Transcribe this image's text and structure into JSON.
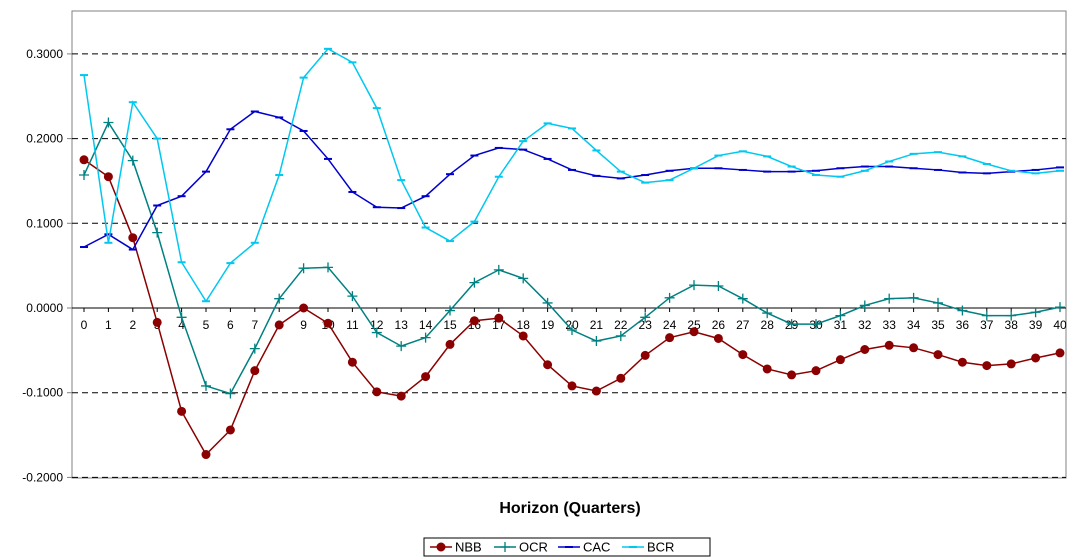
{
  "chart_data": {
    "type": "line",
    "title": "",
    "xlabel": "Horizon (Quarters)",
    "ylabel": "",
    "ylim": [
      -0.2,
      0.35
    ],
    "yticks": [
      "-0.2000",
      "-0.1000",
      "0.0000",
      "0.1000",
      "0.2000",
      "0.3000"
    ],
    "grid": "dashed horizontal",
    "legend_position": "bottom-center",
    "categories": [
      "0",
      "1",
      "2",
      "3",
      "4",
      "5",
      "6",
      "7",
      "8",
      "9",
      "10",
      "11",
      "12",
      "13",
      "14",
      "15",
      "16",
      "17",
      "18",
      "19",
      "20",
      "21",
      "22",
      "23",
      "24",
      "25",
      "26",
      "27",
      "28",
      "29",
      "30",
      "31",
      "32",
      "33",
      "34",
      "35",
      "36",
      "37",
      "38",
      "39",
      "40"
    ],
    "series": [
      {
        "name": "NBB",
        "color": "#8b0000",
        "marker": "circle",
        "values": [
          0.175,
          0.155,
          0.083,
          -0.017,
          -0.122,
          -0.173,
          -0.144,
          -0.074,
          -0.02,
          0.0,
          -0.018,
          -0.064,
          -0.099,
          -0.104,
          -0.081,
          -0.043,
          -0.015,
          -0.012,
          -0.033,
          -0.067,
          -0.092,
          -0.098,
          -0.083,
          -0.056,
          -0.035,
          -0.028,
          -0.036,
          -0.055,
          -0.072,
          -0.079,
          -0.074,
          -0.061,
          -0.049,
          -0.044,
          -0.047,
          -0.055,
          -0.064,
          -0.068,
          -0.066,
          -0.059,
          -0.053
        ]
      },
      {
        "name": "OCR",
        "color": "#008080",
        "marker": "plus",
        "values": [
          0.157,
          0.219,
          0.174,
          0.089,
          -0.011,
          -0.092,
          -0.101,
          -0.048,
          0.011,
          0.047,
          0.048,
          0.014,
          -0.029,
          -0.045,
          -0.035,
          -0.003,
          0.03,
          0.045,
          0.035,
          0.006,
          -0.026,
          -0.039,
          -0.033,
          -0.011,
          0.012,
          0.027,
          0.026,
          0.011,
          -0.006,
          -0.019,
          -0.019,
          -0.009,
          0.003,
          0.011,
          0.012,
          0.006,
          -0.003,
          -0.009,
          -0.009,
          -0.005,
          0.001
        ]
      },
      {
        "name": "CAC",
        "color": "#0000cd",
        "marker": "dash",
        "values": [
          0.072,
          0.087,
          0.069,
          0.121,
          0.132,
          0.161,
          0.211,
          0.232,
          0.225,
          0.209,
          0.176,
          0.137,
          0.119,
          0.118,
          0.132,
          0.158,
          0.18,
          0.189,
          0.187,
          0.176,
          0.163,
          0.156,
          0.153,
          0.157,
          0.162,
          0.165,
          0.165,
          0.163,
          0.161,
          0.161,
          0.162,
          0.165,
          0.167,
          0.167,
          0.165,
          0.163,
          0.16,
          0.159,
          0.161,
          0.163,
          0.166
        ]
      },
      {
        "name": "BCR",
        "color": "#00c8f0",
        "marker": "dash",
        "values": [
          0.275,
          0.077,
          0.243,
          0.2,
          0.054,
          0.008,
          0.053,
          0.077,
          0.157,
          0.272,
          0.306,
          0.29,
          0.236,
          0.151,
          0.095,
          0.079,
          0.102,
          0.155,
          0.197,
          0.218,
          0.212,
          0.186,
          0.161,
          0.148,
          0.151,
          0.165,
          0.18,
          0.185,
          0.179,
          0.167,
          0.157,
          0.155,
          0.162,
          0.173,
          0.182,
          0.184,
          0.179,
          0.17,
          0.162,
          0.159,
          0.162
        ]
      }
    ]
  }
}
